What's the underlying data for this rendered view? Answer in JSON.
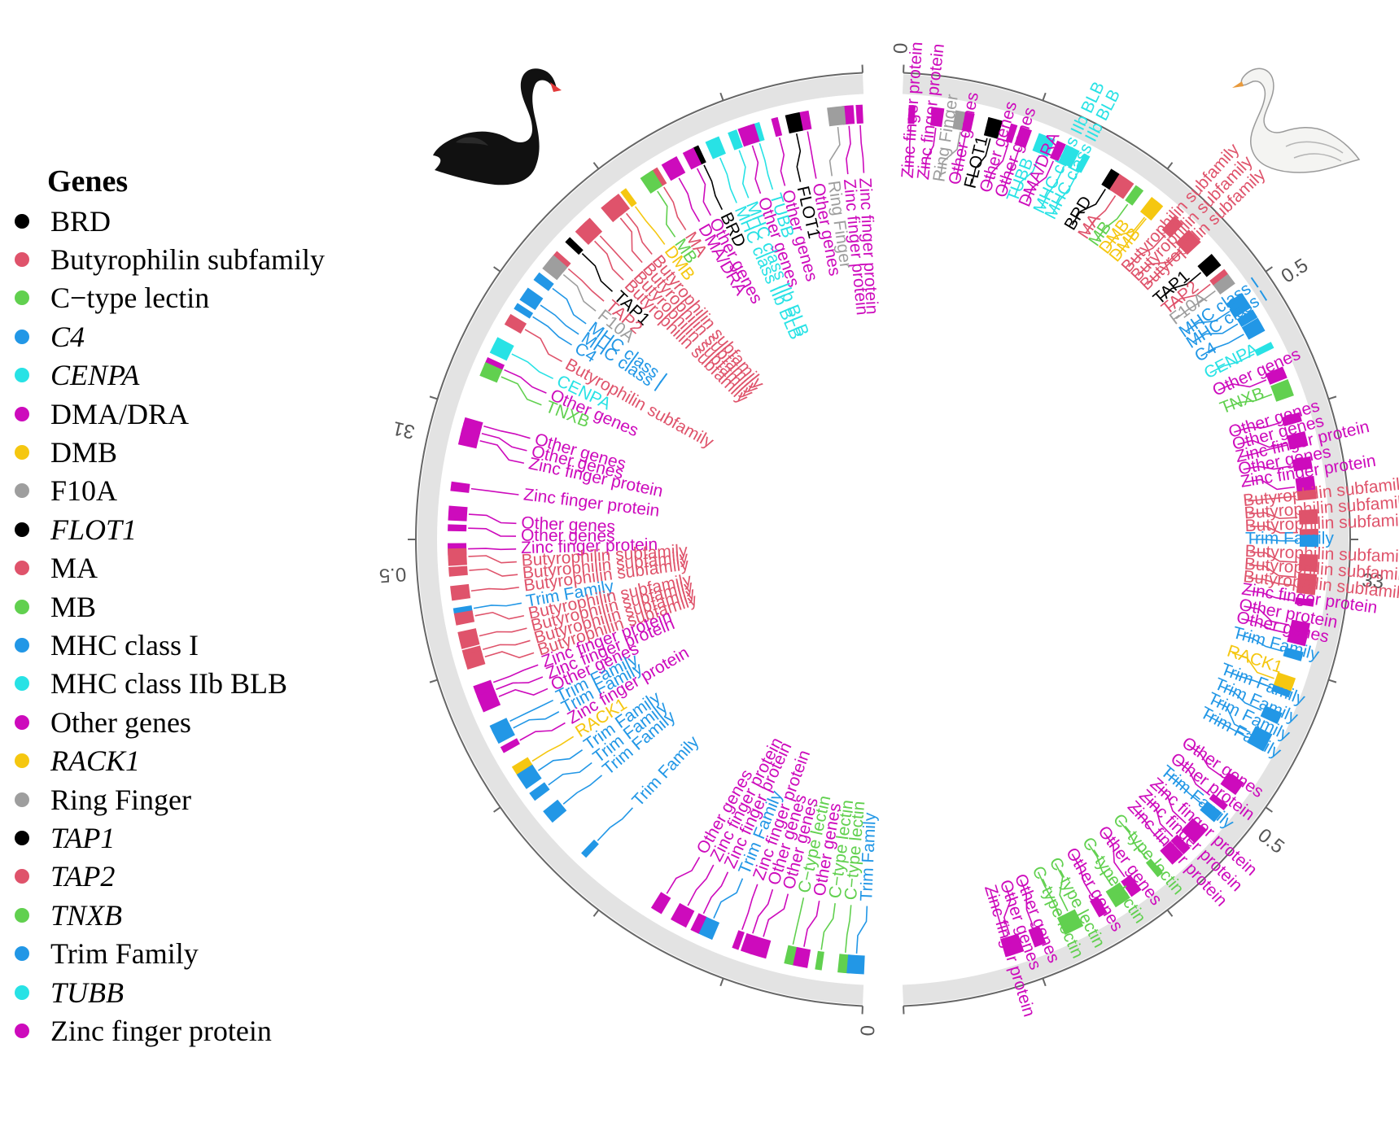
{
  "legend": {
    "title": "Genes",
    "items": [
      {
        "label": "BRD",
        "color": "#000000",
        "italic": false
      },
      {
        "label": "Butyrophilin subfamily",
        "color": "#DF536B",
        "italic": false
      },
      {
        "label": "C−type lectin",
        "color": "#61D04F",
        "italic": false
      },
      {
        "label": "C4",
        "color": "#2297E6",
        "italic": true
      },
      {
        "label": "CENPA",
        "color": "#28E2E5",
        "italic": true
      },
      {
        "label": "DMA/DRA",
        "color": "#CD0BBC",
        "italic": false
      },
      {
        "label": "DMB",
        "color": "#F5C710",
        "italic": false
      },
      {
        "label": "F10A",
        "color": "#9E9E9E",
        "italic": false
      },
      {
        "label": "FLOT1",
        "color": "#000000",
        "italic": true
      },
      {
        "label": "MA",
        "color": "#DF536B",
        "italic": false
      },
      {
        "label": "MB",
        "color": "#61D04F",
        "italic": false
      },
      {
        "label": "MHC class I",
        "color": "#2297E6",
        "italic": false
      },
      {
        "label": "MHC class IIb BLB",
        "color": "#28E2E5",
        "italic": false
      },
      {
        "label": "Other genes",
        "color": "#CD0BBC",
        "italic": false
      },
      {
        "label": "RACK1",
        "color": "#F5C710",
        "italic": true
      },
      {
        "label": "Ring Finger",
        "color": "#9E9E9E",
        "italic": false
      },
      {
        "label": "TAP1",
        "color": "#000000",
        "italic": true
      },
      {
        "label": "TAP2",
        "color": "#DF536B",
        "italic": true
      },
      {
        "label": "TNXB",
        "color": "#61D04F",
        "italic": true
      },
      {
        "label": "Trim Family",
        "color": "#2297E6",
        "italic": false
      },
      {
        "label": "TUBB",
        "color": "#28E2E5",
        "italic": true
      },
      {
        "label": "Zinc finger protein",
        "color": "#CD0BBC",
        "italic": false
      }
    ]
  },
  "circos": {
    "track_color": "#E3E3E3",
    "axis_color": "#666666",
    "tick_labels": [
      {
        "text": "0",
        "angle": 2.2
      },
      {
        "text": "0.5",
        "angle": 57
      },
      {
        "text": "33",
        "angle": 95
      },
      {
        "text": "0.5",
        "angle": 128
      },
      {
        "text": "0",
        "angle": 182
      },
      {
        "text": "31",
        "angle": -77
      },
      {
        "text": "0.5",
        "angle": -94
      }
    ],
    "right_labels": [
      {
        "text": "Zinc finger protein",
        "color": "#CD0BBC",
        "angle": 4
      },
      {
        "text": "Zinc finger protein",
        "color": "#CD0BBC",
        "angle": 6.5
      },
      {
        "text": "Ring Finger",
        "color": "#9E9E9E",
        "angle": 9
      },
      {
        "text": "Other genes",
        "color": "#CD0BBC",
        "angle": 11.5
      },
      {
        "text": "FLOT1",
        "color": "#000000",
        "angle": 14
      },
      {
        "text": "Other genes",
        "color": "#CD0BBC",
        "angle": 16.5
      },
      {
        "text": "Other genes",
        "color": "#CD0BBC",
        "angle": 19
      },
      {
        "text": "TUBB",
        "color": "#28E2E5",
        "angle": 21
      },
      {
        "text": "DMA/DRA",
        "color": "#CD0BBC",
        "angle": 23
      },
      {
        "text": "MHC class IIb BLB",
        "color": "#28E2E5",
        "angle": 25.5
      },
      {
        "text": "MHC class IIb BLB",
        "color": "#28E2E5",
        "angle": 27.5
      },
      {
        "text": "BRD",
        "color": "#000000",
        "angle": 31
      },
      {
        "text": "MA",
        "color": "#DF536B",
        "angle": 33.5
      },
      {
        "text": "MB",
        "color": "#61D04F",
        "angle": 35.5
      },
      {
        "text": "DMB",
        "color": "#F5C710",
        "angle": 37.5
      },
      {
        "text": "DMB",
        "color": "#F5C710",
        "angle": 39.5
      },
      {
        "text": "Butyrophilin subfamily",
        "color": "#DF536B",
        "angle": 42
      },
      {
        "text": "Butyrophilin subfamily",
        "color": "#DF536B",
        "angle": 44
      },
      {
        "text": "Butyrophilin subfamily",
        "color": "#DF536B",
        "angle": 46
      },
      {
        "text": "TAP1",
        "color": "#000000",
        "angle": 49
      },
      {
        "text": "TAP2",
        "color": "#DF536B",
        "angle": 51
      },
      {
        "text": "F10A",
        "color": "#9E9E9E",
        "angle": 53
      },
      {
        "text": "MHC class I",
        "color": "#2297E6",
        "angle": 55.5
      },
      {
        "text": "MHC class I",
        "color": "#2297E6",
        "angle": 57.5
      },
      {
        "text": "C4",
        "color": "#2297E6",
        "angle": 60
      },
      {
        "text": "CENPA",
        "color": "#28E2E5",
        "angle": 63
      },
      {
        "text": "Other genes",
        "color": "#CD0BBC",
        "angle": 66
      },
      {
        "text": "TNXB",
        "color": "#61D04F",
        "angle": 69
      },
      {
        "text": "Other genes",
        "color": "#CD0BBC",
        "angle": 73
      },
      {
        "text": "Other genes",
        "color": "#CD0BBC",
        "angle": 75
      },
      {
        "text": "Zinc finger protein",
        "color": "#CD0BBC",
        "angle": 77
      },
      {
        "text": "Other genes",
        "color": "#CD0BBC",
        "angle": 79
      },
      {
        "text": "Zinc finger protein",
        "color": "#CD0BBC",
        "angle": 81
      },
      {
        "text": "Butyrophilin subfamily",
        "color": "#DF536B",
        "angle": 84
      },
      {
        "text": "Butyrophilin subfamily",
        "color": "#DF536B",
        "angle": 86
      },
      {
        "text": "Butyrophilin subfamily",
        "color": "#DF536B",
        "angle": 88
      },
      {
        "text": "Trim Family",
        "color": "#2297E6",
        "angle": 90
      },
      {
        "text": "Butyrophilin subfamily",
        "color": "#DF536B",
        "angle": 92
      },
      {
        "text": "Butyrophilin subfamily",
        "color": "#DF536B",
        "angle": 94
      },
      {
        "text": "Butyrophilin subfamily",
        "color": "#DF536B",
        "angle": 96
      },
      {
        "text": "Zinc finger protein",
        "color": "#CD0BBC",
        "angle": 98
      },
      {
        "text": "Other protein",
        "color": "#CD0BBC",
        "angle": 100.5
      },
      {
        "text": "Other genes",
        "color": "#CD0BBC",
        "angle": 102.5
      },
      {
        "text": "Trim Family",
        "color": "#2297E6",
        "angle": 105
      },
      {
        "text": "RACK1",
        "color": "#F5C710",
        "angle": 108
      },
      {
        "text": "Trim Family",
        "color": "#2297E6",
        "angle": 111
      },
      {
        "text": "Trim Family",
        "color": "#2297E6",
        "angle": 113.5
      },
      {
        "text": "Trim Family",
        "color": "#2297E6",
        "angle": 116
      },
      {
        "text": "Trim Family",
        "color": "#2297E6",
        "angle": 118.5
      },
      {
        "text": "Other genes",
        "color": "#CD0BBC",
        "angle": 124
      },
      {
        "text": "Other protein",
        "color": "#CD0BBC",
        "angle": 127
      },
      {
        "text": "Trim Family",
        "color": "#2297E6",
        "angle": 129.5
      },
      {
        "text": "Zinc finger protein",
        "color": "#CD0BBC",
        "angle": 132
      },
      {
        "text": "Zinc finger protein",
        "color": "#CD0BBC",
        "angle": 134.5
      },
      {
        "text": "Zinc finger protein",
        "color": "#CD0BBC",
        "angle": 137
      },
      {
        "text": "C−type lectin",
        "color": "#61D04F",
        "angle": 140
      },
      {
        "text": "Other genes",
        "color": "#CD0BBC",
        "angle": 143
      },
      {
        "text": "C−type lectin",
        "color": "#61D04F",
        "angle": 146
      },
      {
        "text": "Other genes",
        "color": "#CD0BBC",
        "angle": 149
      },
      {
        "text": "C−type lectin",
        "color": "#61D04F",
        "angle": 152
      },
      {
        "text": "C−type lectin",
        "color": "#61D04F",
        "angle": 155
      },
      {
        "text": "Other genes",
        "color": "#CD0BBC",
        "angle": 158
      },
      {
        "text": "Other genes",
        "color": "#CD0BBC",
        "angle": 160.5
      },
      {
        "text": "Zinc finger protein",
        "color": "#CD0BBC",
        "angle": 163
      }
    ],
    "left_labels": [
      {
        "text": "Zinc finger protein",
        "color": "#CD0BBC",
        "angle": -3
      },
      {
        "text": "Zinc finger protein",
        "color": "#CD0BBC",
        "angle": -5.5
      },
      {
        "text": "Ring Finger",
        "color": "#9E9E9E",
        "angle": -8
      },
      {
        "text": "Other genes",
        "color": "#CD0BBC",
        "angle": -10.5
      },
      {
        "text": "FLOT1",
        "color": "#000000",
        "angle": -13
      },
      {
        "text": "Other genes",
        "color": "#CD0BBC",
        "angle": -15.5
      },
      {
        "text": "TUBB",
        "color": "#28E2E5",
        "angle": -17.5
      },
      {
        "text": "Other genes",
        "color": "#CD0BBC",
        "angle": -19.5
      },
      {
        "text": "MHC class IIb BLB",
        "color": "#28E2E5",
        "angle": -21.5
      },
      {
        "text": "MHC class IIb BLB",
        "color": "#28E2E5",
        "angle": -23.5
      },
      {
        "text": "BRD",
        "color": "#000000",
        "angle": -26
      },
      {
        "text": "Other genes",
        "color": "#CD0BBC",
        "angle": -28
      },
      {
        "text": "DMA/DRA",
        "color": "#CD0BBC",
        "angle": -30
      },
      {
        "text": "MA",
        "color": "#DF536B",
        "angle": -32.5
      },
      {
        "text": "MB",
        "color": "#61D04F",
        "angle": -34.5
      },
      {
        "text": "DMB",
        "color": "#F5C710",
        "angle": -36.5
      },
      {
        "text": "Butyrophilin subfamily",
        "color": "#DF536B",
        "angle": -39
      },
      {
        "text": "Butyrophilin subfamily",
        "color": "#DF536B",
        "angle": -41
      },
      {
        "text": "Butyrophilin subfamily",
        "color": "#DF536B",
        "angle": -43
      },
      {
        "text": "Butyrophilin subfamily",
        "color": "#DF536B",
        "angle": -45
      },
      {
        "text": "TAP1",
        "color": "#000000",
        "angle": -47.5
      },
      {
        "text": "TAP2",
        "color": "#DF536B",
        "angle": -49.5
      },
      {
        "text": "F10A",
        "color": "#9E9E9E",
        "angle": -51.5
      },
      {
        "text": "MHC class I",
        "color": "#2297E6",
        "angle": -54
      },
      {
        "text": "MHC class I",
        "color": "#2297E6",
        "angle": -56
      },
      {
        "text": "C4",
        "color": "#2297E6",
        "angle": -58
      },
      {
        "text": "Butyrophilin subfamily",
        "color": "#DF536B",
        "angle": -61
      },
      {
        "text": "CENPA",
        "color": "#28E2E5",
        "angle": -64
      },
      {
        "text": "Other genes",
        "color": "#CD0BBC",
        "angle": -66.5
      },
      {
        "text": "TNXB",
        "color": "#61D04F",
        "angle": -68.5
      },
      {
        "text": "Other genes",
        "color": "#CD0BBC",
        "angle": -74
      },
      {
        "text": "Other genes",
        "color": "#CD0BBC",
        "angle": -76
      },
      {
        "text": "Zinc finger protein",
        "color": "#CD0BBC",
        "angle": -78
      },
      {
        "text": "Zinc finger protein",
        "color": "#CD0BBC",
        "angle": -83
      },
      {
        "text": "Other genes",
        "color": "#CD0BBC",
        "angle": -87.5
      },
      {
        "text": "Other genes",
        "color": "#CD0BBC",
        "angle": -89.5
      },
      {
        "text": "Zinc finger protein",
        "color": "#CD0BBC",
        "angle": -91.5
      },
      {
        "text": "Butyrophilin subfamily",
        "color": "#DF536B",
        "angle": -93.5
      },
      {
        "text": "Butyrophilin subfamily",
        "color": "#DF536B",
        "angle": -95.5
      },
      {
        "text": "Butyrophilin subfamily",
        "color": "#DF536B",
        "angle": -97.5
      },
      {
        "text": "Trim Family",
        "color": "#2297E6",
        "angle": -100
      },
      {
        "text": "Butyrophilin subfamily",
        "color": "#DF536B",
        "angle": -102
      },
      {
        "text": "Butyrophilin subfamily",
        "color": "#DF536B",
        "angle": -104
      },
      {
        "text": "Butyrophilin subfamily",
        "color": "#DF536B",
        "angle": -106
      },
      {
        "text": "Butyrophilin subfamily",
        "color": "#DF536B",
        "angle": -108
      },
      {
        "text": "Zinc finger protein",
        "color": "#CD0BBC",
        "angle": -110
      },
      {
        "text": "Zinc finger protein",
        "color": "#CD0BBC",
        "angle": -112
      },
      {
        "text": "Other genes",
        "color": "#CD0BBC",
        "angle": -114
      },
      {
        "text": "Trim Family",
        "color": "#2297E6",
        "angle": -116
      },
      {
        "text": "Trim Family",
        "color": "#2297E6",
        "angle": -118
      },
      {
        "text": "Zinc finger protein",
        "color": "#CD0BBC",
        "angle": -120
      },
      {
        "text": "RACK1",
        "color": "#F5C710",
        "angle": -122.5
      },
      {
        "text": "Trim Family",
        "color": "#2297E6",
        "angle": -125
      },
      {
        "text": "Trim Family",
        "color": "#2297E6",
        "angle": -127.5
      },
      {
        "text": "Trim Family",
        "color": "#2297E6",
        "angle": -130
      },
      {
        "text": "Trim Family",
        "color": "#2297E6",
        "angle": -137
      },
      {
        "text": "Other genes",
        "color": "#CD0BBC",
        "angle": -150
      },
      {
        "text": "Zinc finger protein",
        "color": "#CD0BBC",
        "angle": -152.5
      },
      {
        "text": "Zinc finger protein",
        "color": "#CD0BBC",
        "angle": -155
      },
      {
        "text": "Trim Family",
        "color": "#2297E6",
        "angle": -157.5
      },
      {
        "text": "Zinc finger protein",
        "color": "#CD0BBC",
        "angle": -160
      },
      {
        "text": "Other genes",
        "color": "#CD0BBC",
        "angle": -162.5
      },
      {
        "text": "Other genes",
        "color": "#CD0BBC",
        "angle": -165
      },
      {
        "text": "C−type lectin",
        "color": "#61D04F",
        "angle": -167.5
      },
      {
        "text": "Other genes",
        "color": "#CD0BBC",
        "angle": -170
      },
      {
        "text": "C−type lectin",
        "color": "#61D04F",
        "angle": -172.5
      },
      {
        "text": "C−type lectin",
        "color": "#61D04F",
        "angle": -175
      },
      {
        "text": "Trim Family",
        "color": "#2297E6",
        "angle": -177.5
      }
    ]
  }
}
